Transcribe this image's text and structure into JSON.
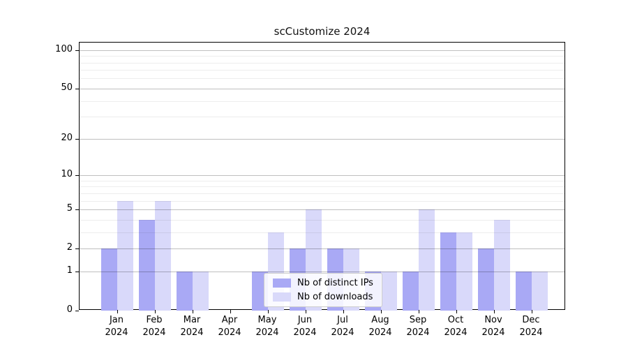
{
  "title": "scCustomize 2024",
  "chart_data": {
    "type": "bar",
    "title": "scCustomize 2024",
    "yscale": "log1p",
    "grid": true,
    "legend_position": "lower center",
    "x_months": [
      "Jan",
      "Feb",
      "Mar",
      "Apr",
      "May",
      "Jun",
      "Jul",
      "Aug",
      "Sep",
      "Oct",
      "Nov",
      "Dec"
    ],
    "x_year_label": "2024",
    "categories": [
      "Jan 2024",
      "Feb 2024",
      "Mar 2024",
      "Apr 2024",
      "May 2024",
      "Jun 2024",
      "Jul 2024",
      "Aug 2024",
      "Sep 2024",
      "Oct 2024",
      "Nov 2024",
      "Dec 2024"
    ],
    "series": [
      {
        "name": "Nb of distinct IPs",
        "color": "#a9a9f5",
        "values": [
          2,
          4,
          1,
          0,
          1,
          2,
          2,
          1,
          1,
          3,
          2,
          1
        ]
      },
      {
        "name": "Nb of downloads",
        "color": "#d9d9fa",
        "values": [
          6,
          6,
          1,
          0,
          3,
          5,
          2,
          1,
          5,
          3,
          4,
          1
        ]
      }
    ],
    "y_major_ticks": [
      0,
      1,
      2,
      5,
      10,
      20,
      50,
      100
    ],
    "y_minor_gridlines": [
      3,
      4,
      6,
      7,
      8,
      9,
      30,
      40,
      60,
      70,
      80,
      90
    ],
    "ylim": [
      0,
      114.3
    ],
    "colors": {
      "major_grid": "#c0c0c0",
      "minor_grid": "#ececec",
      "axis": "#000000",
      "background": "#ffffff"
    }
  }
}
